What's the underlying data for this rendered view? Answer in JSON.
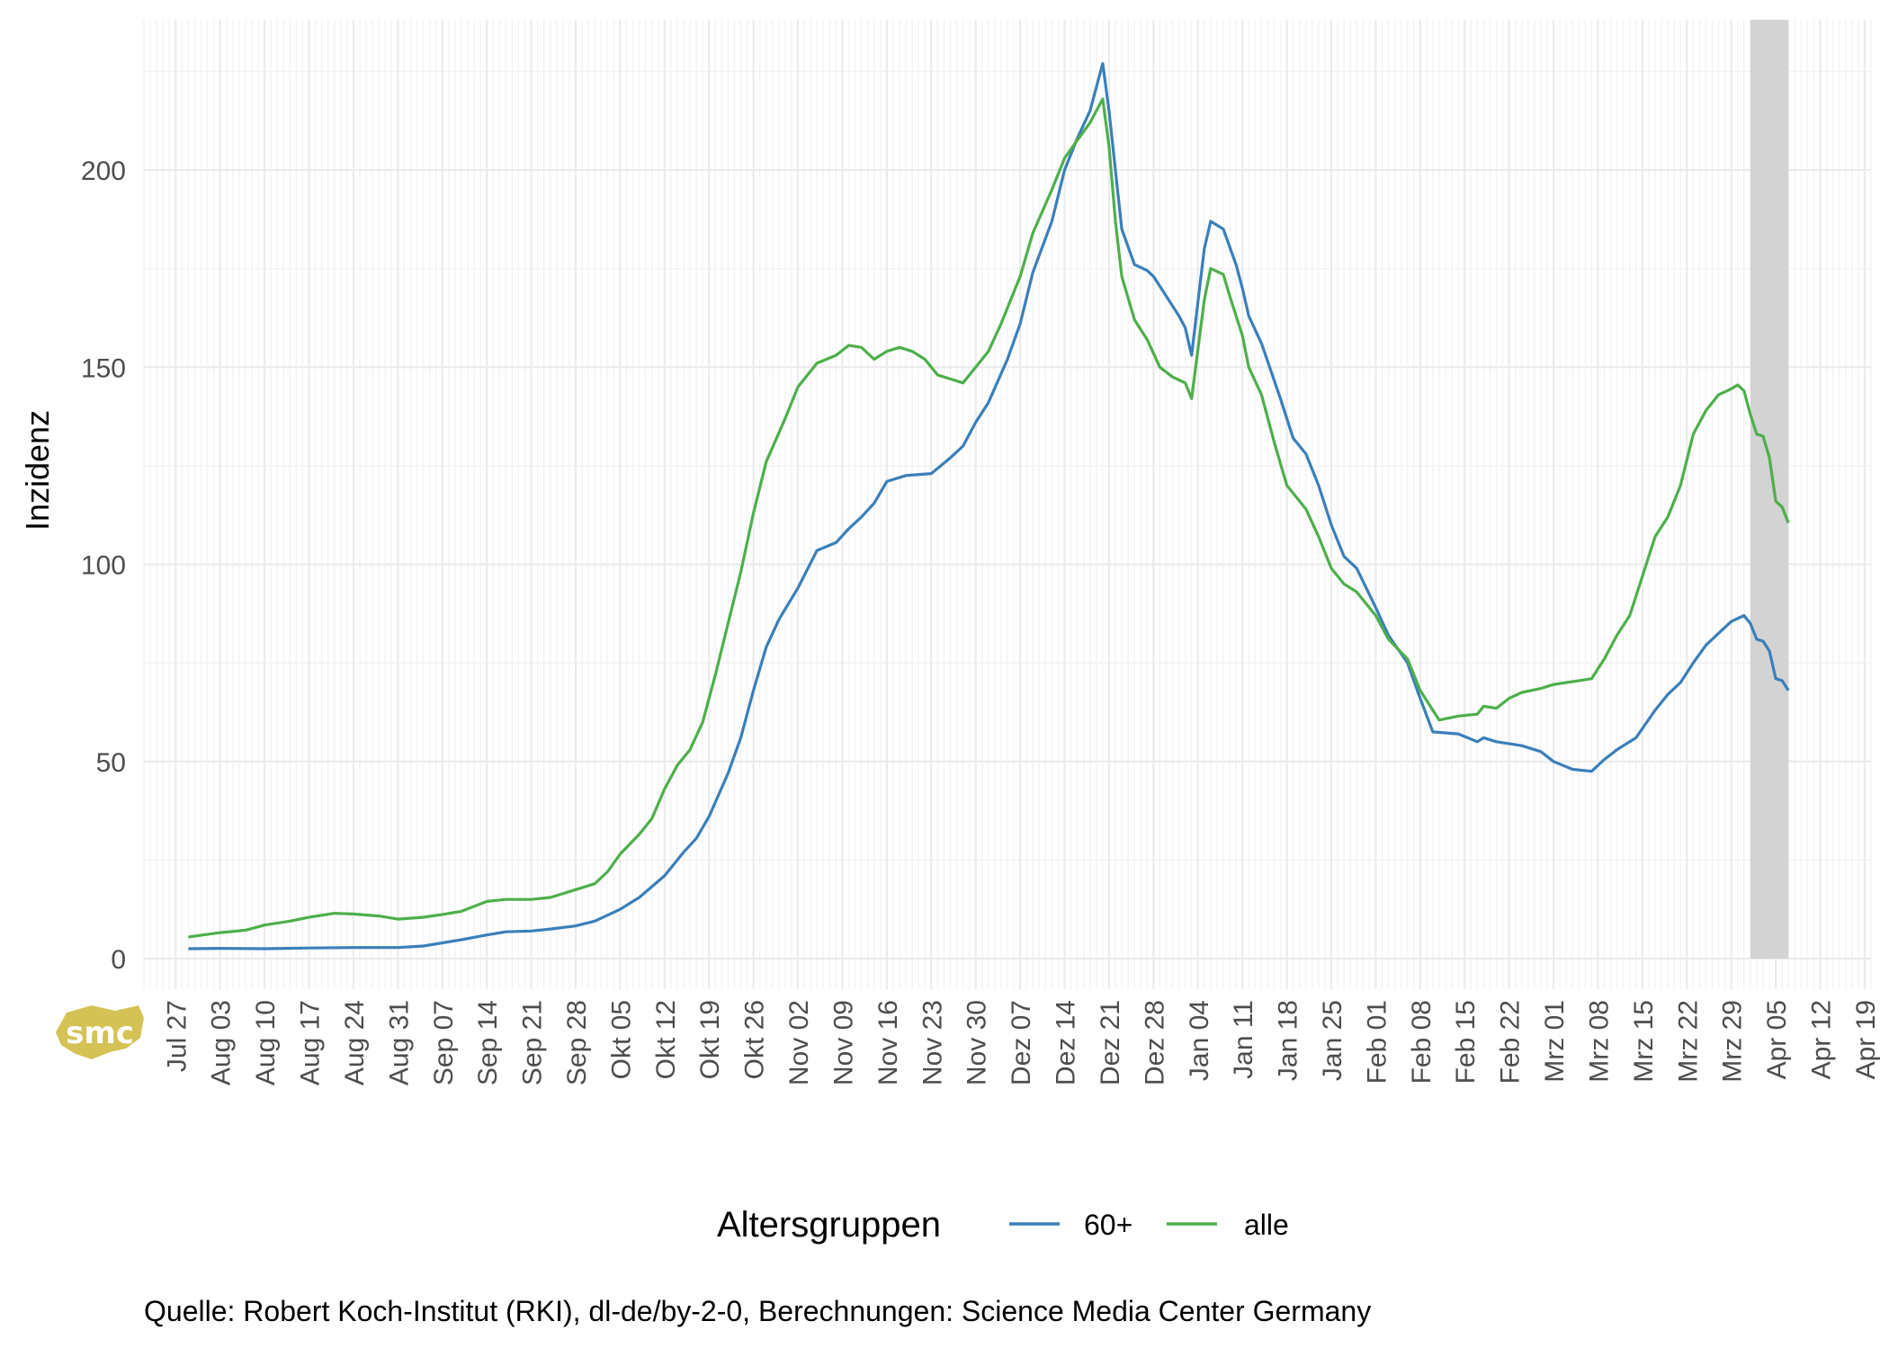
{
  "chart_data": {
    "type": "line",
    "ylabel": "Inzidenz",
    "ylim": [
      0,
      225
    ],
    "yticks": [
      0,
      50,
      100,
      150,
      200
    ],
    "xlim": [
      "2020-07-22",
      "2021-04-20"
    ],
    "x_tick_labels": [
      {
        "date": "2020-07-27",
        "label": "Jul 27"
      },
      {
        "date": "2020-08-03",
        "label": "Aug 03"
      },
      {
        "date": "2020-08-10",
        "label": "Aug 10"
      },
      {
        "date": "2020-08-17",
        "label": "Aug 17"
      },
      {
        "date": "2020-08-24",
        "label": "Aug 24"
      },
      {
        "date": "2020-08-31",
        "label": "Aug 31"
      },
      {
        "date": "2020-09-07",
        "label": "Sep 07"
      },
      {
        "date": "2020-09-14",
        "label": "Sep 14"
      },
      {
        "date": "2020-09-21",
        "label": "Sep 21"
      },
      {
        "date": "2020-09-28",
        "label": "Sep 28"
      },
      {
        "date": "2020-10-05",
        "label": "Okt 05"
      },
      {
        "date": "2020-10-12",
        "label": "Okt 12"
      },
      {
        "date": "2020-10-19",
        "label": "Okt 19"
      },
      {
        "date": "2020-10-26",
        "label": "Okt 26"
      },
      {
        "date": "2020-11-02",
        "label": "Nov 02"
      },
      {
        "date": "2020-11-09",
        "label": "Nov 09"
      },
      {
        "date": "2020-11-16",
        "label": "Nov 16"
      },
      {
        "date": "2020-11-23",
        "label": "Nov 23"
      },
      {
        "date": "2020-11-30",
        "label": "Nov 30"
      },
      {
        "date": "2020-12-07",
        "label": "Dez 07"
      },
      {
        "date": "2020-12-14",
        "label": "Dez 14"
      },
      {
        "date": "2020-12-21",
        "label": "Dez 21"
      },
      {
        "date": "2020-12-28",
        "label": "Dez 28"
      },
      {
        "date": "2021-01-04",
        "label": "Jan 04"
      },
      {
        "date": "2021-01-11",
        "label": "Jan 11"
      },
      {
        "date": "2021-01-18",
        "label": "Jan 18"
      },
      {
        "date": "2021-01-25",
        "label": "Jan 25"
      },
      {
        "date": "2021-02-01",
        "label": "Feb 01"
      },
      {
        "date": "2021-02-08",
        "label": "Feb 08"
      },
      {
        "date": "2021-02-15",
        "label": "Feb 15"
      },
      {
        "date": "2021-02-22",
        "label": "Feb 22"
      },
      {
        "date": "2021-03-01",
        "label": "Mrz 01"
      },
      {
        "date": "2021-03-08",
        "label": "Mrz 08"
      },
      {
        "date": "2021-03-15",
        "label": "Mrz 15"
      },
      {
        "date": "2021-03-22",
        "label": "Mrz 22"
      },
      {
        "date": "2021-03-29",
        "label": "Mrz 29"
      },
      {
        "date": "2021-04-05",
        "label": "Apr 05"
      },
      {
        "date": "2021-04-12",
        "label": "Apr 12"
      },
      {
        "date": "2021-04-19",
        "label": "Apr 19"
      }
    ],
    "shaded_range": {
      "from": "2021-04-01",
      "to": "2021-04-07",
      "color": "#d3d3d3"
    },
    "grid": true,
    "legend": {
      "title": "Altersgruppen",
      "position": "bottom"
    },
    "series": [
      {
        "name": "60+",
        "color": "#3a7fba",
        "points": [
          [
            "2020-07-29",
            2.5
          ],
          [
            "2020-08-03",
            2.6
          ],
          [
            "2020-08-10",
            2.5
          ],
          [
            "2020-08-17",
            2.7
          ],
          [
            "2020-08-24",
            2.8
          ],
          [
            "2020-08-31",
            2.8
          ],
          [
            "2020-09-04",
            3.2
          ],
          [
            "2020-09-07",
            4.0
          ],
          [
            "2020-09-10",
            4.8
          ],
          [
            "2020-09-14",
            6.0
          ],
          [
            "2020-09-17",
            6.8
          ],
          [
            "2020-09-21",
            7.0
          ],
          [
            "2020-09-24",
            7.5
          ],
          [
            "2020-09-28",
            8.3
          ],
          [
            "2020-10-01",
            9.5
          ],
          [
            "2020-10-05",
            12.5
          ],
          [
            "2020-10-08",
            15.5
          ],
          [
            "2020-10-12",
            21.0
          ],
          [
            "2020-10-15",
            27.0
          ],
          [
            "2020-10-17",
            30.5
          ],
          [
            "2020-10-19",
            36.0
          ],
          [
            "2020-10-22",
            47.0
          ],
          [
            "2020-10-24",
            56.0
          ],
          [
            "2020-10-26",
            68.0
          ],
          [
            "2020-10-28",
            79.0
          ],
          [
            "2020-10-30",
            86.0
          ],
          [
            "2020-11-02",
            94.0
          ],
          [
            "2020-11-05",
            103.5
          ],
          [
            "2020-11-08",
            105.5
          ],
          [
            "2020-11-10",
            109.0
          ],
          [
            "2020-11-12",
            112.0
          ],
          [
            "2020-11-14",
            115.5
          ],
          [
            "2020-11-16",
            121.0
          ],
          [
            "2020-11-19",
            122.5
          ],
          [
            "2020-11-23",
            123.0
          ],
          [
            "2020-11-26",
            127.0
          ],
          [
            "2020-11-28",
            130.0
          ],
          [
            "2020-11-30",
            136.0
          ],
          [
            "2020-12-02",
            141.0
          ],
          [
            "2020-12-05",
            152.0
          ],
          [
            "2020-12-07",
            161.0
          ],
          [
            "2020-12-09",
            174.0
          ],
          [
            "2020-12-12",
            187.0
          ],
          [
            "2020-12-14",
            200.0
          ],
          [
            "2020-12-16",
            208.0
          ],
          [
            "2020-12-18",
            215.0
          ],
          [
            "2020-12-20",
            227.0
          ],
          [
            "2020-12-21",
            215.0
          ],
          [
            "2020-12-23",
            185.0
          ],
          [
            "2020-12-25",
            176.0
          ],
          [
            "2020-12-27",
            174.5
          ],
          [
            "2020-12-28",
            173.0
          ],
          [
            "2020-12-30",
            168.0
          ],
          [
            "2021-01-01",
            163.0
          ],
          [
            "2021-01-02",
            160.0
          ],
          [
            "2021-01-03",
            153.0
          ],
          [
            "2021-01-05",
            180.0
          ],
          [
            "2021-01-06",
            187.0
          ],
          [
            "2021-01-08",
            185.0
          ],
          [
            "2021-01-10",
            176.0
          ],
          [
            "2021-01-11",
            170.0
          ],
          [
            "2021-01-12",
            163.0
          ],
          [
            "2021-01-14",
            156.0
          ],
          [
            "2021-01-17",
            142.0
          ],
          [
            "2021-01-19",
            132.0
          ],
          [
            "2021-01-21",
            128.0
          ],
          [
            "2021-01-23",
            120.0
          ],
          [
            "2021-01-25",
            110.0
          ],
          [
            "2021-01-27",
            102.0
          ],
          [
            "2021-01-29",
            99.0
          ],
          [
            "2021-02-01",
            89.0
          ],
          [
            "2021-02-03",
            82.0
          ],
          [
            "2021-02-06",
            75.0
          ],
          [
            "2021-02-08",
            66.0
          ],
          [
            "2021-02-10",
            57.5
          ],
          [
            "2021-02-14",
            57.0
          ],
          [
            "2021-02-17",
            55.0
          ],
          [
            "2021-02-18",
            56.0
          ],
          [
            "2021-02-20",
            55.0
          ],
          [
            "2021-02-24",
            54.0
          ],
          [
            "2021-02-27",
            52.5
          ],
          [
            "2021-03-01",
            50.0
          ],
          [
            "2021-03-04",
            48.0
          ],
          [
            "2021-03-07",
            47.5
          ],
          [
            "2021-03-09",
            50.5
          ],
          [
            "2021-03-11",
            53.0
          ],
          [
            "2021-03-14",
            56.0
          ],
          [
            "2021-03-17",
            63.0
          ],
          [
            "2021-03-19",
            67.0
          ],
          [
            "2021-03-21",
            70.0
          ],
          [
            "2021-03-23",
            75.0
          ],
          [
            "2021-03-25",
            79.5
          ],
          [
            "2021-03-27",
            82.5
          ],
          [
            "2021-03-29",
            85.5
          ],
          [
            "2021-03-31",
            87.0
          ],
          [
            "2021-04-01",
            85.0
          ],
          [
            "2021-04-02",
            81.0
          ],
          [
            "2021-04-03",
            80.5
          ],
          [
            "2021-04-04",
            78.0
          ],
          [
            "2021-04-05",
            71.0
          ],
          [
            "2021-04-06",
            70.5
          ],
          [
            "2021-04-07",
            68.0
          ]
        ]
      },
      {
        "name": "alle",
        "color": "#4daf4a",
        "points": [
          [
            "2020-07-29",
            5.5
          ],
          [
            "2020-08-03",
            6.6
          ],
          [
            "2020-08-07",
            7.2
          ],
          [
            "2020-08-10",
            8.5
          ],
          [
            "2020-08-14",
            9.5
          ],
          [
            "2020-08-17",
            10.5
          ],
          [
            "2020-08-21",
            11.5
          ],
          [
            "2020-08-24",
            11.3
          ],
          [
            "2020-08-28",
            10.8
          ],
          [
            "2020-08-31",
            10.0
          ],
          [
            "2020-09-04",
            10.5
          ],
          [
            "2020-09-07",
            11.2
          ],
          [
            "2020-09-10",
            12.0
          ],
          [
            "2020-09-14",
            14.5
          ],
          [
            "2020-09-17",
            15.0
          ],
          [
            "2020-09-21",
            15.0
          ],
          [
            "2020-09-24",
            15.5
          ],
          [
            "2020-09-28",
            17.5
          ],
          [
            "2020-10-01",
            19.0
          ],
          [
            "2020-10-03",
            22.0
          ],
          [
            "2020-10-05",
            26.5
          ],
          [
            "2020-10-08",
            31.5
          ],
          [
            "2020-10-10",
            35.5
          ],
          [
            "2020-10-12",
            43.0
          ],
          [
            "2020-10-14",
            49.0
          ],
          [
            "2020-10-16",
            53.0
          ],
          [
            "2020-10-18",
            60.0
          ],
          [
            "2020-10-20",
            72.0
          ],
          [
            "2020-10-22",
            85.0
          ],
          [
            "2020-10-24",
            98.0
          ],
          [
            "2020-10-26",
            113.0
          ],
          [
            "2020-10-28",
            126.0
          ],
          [
            "2020-10-31",
            137.0
          ],
          [
            "2020-11-02",
            145.0
          ],
          [
            "2020-11-05",
            151.0
          ],
          [
            "2020-11-08",
            153.0
          ],
          [
            "2020-11-10",
            155.5
          ],
          [
            "2020-11-12",
            155.0
          ],
          [
            "2020-11-14",
            152.0
          ],
          [
            "2020-11-16",
            154.0
          ],
          [
            "2020-11-18",
            155.0
          ],
          [
            "2020-11-20",
            154.0
          ],
          [
            "2020-11-22",
            152.0
          ],
          [
            "2020-11-24",
            148.0
          ],
          [
            "2020-11-26",
            147.0
          ],
          [
            "2020-11-28",
            146.0
          ],
          [
            "2020-11-30",
            150.0
          ],
          [
            "2020-12-02",
            154.0
          ],
          [
            "2020-12-04",
            161.0
          ],
          [
            "2020-12-07",
            173.0
          ],
          [
            "2020-12-09",
            184.0
          ],
          [
            "2020-12-12",
            195.0
          ],
          [
            "2020-12-14",
            203.0
          ],
          [
            "2020-12-16",
            207.5
          ],
          [
            "2020-12-18",
            212.0
          ],
          [
            "2020-12-20",
            218.0
          ],
          [
            "2020-12-21",
            206.0
          ],
          [
            "2020-12-22",
            187.0
          ],
          [
            "2020-12-23",
            173.0
          ],
          [
            "2020-12-25",
            162.0
          ],
          [
            "2020-12-27",
            157.0
          ],
          [
            "2020-12-29",
            150.0
          ],
          [
            "2020-12-31",
            147.5
          ],
          [
            "2021-01-02",
            146.0
          ],
          [
            "2021-01-03",
            142.0
          ],
          [
            "2021-01-05",
            167.0
          ],
          [
            "2021-01-06",
            175.0
          ],
          [
            "2021-01-08",
            173.5
          ],
          [
            "2021-01-09",
            168.0
          ],
          [
            "2021-01-11",
            158.0
          ],
          [
            "2021-01-12",
            150.0
          ],
          [
            "2021-01-14",
            143.0
          ],
          [
            "2021-01-16",
            131.0
          ],
          [
            "2021-01-18",
            120.0
          ],
          [
            "2021-01-21",
            114.0
          ],
          [
            "2021-01-23",
            107.0
          ],
          [
            "2021-01-25",
            99.0
          ],
          [
            "2021-01-27",
            95.0
          ],
          [
            "2021-01-29",
            93.0
          ],
          [
            "2021-02-01",
            87.0
          ],
          [
            "2021-02-03",
            81.0
          ],
          [
            "2021-02-06",
            76.0
          ],
          [
            "2021-02-08",
            68.0
          ],
          [
            "2021-02-10",
            63.0
          ],
          [
            "2021-02-11",
            60.5
          ],
          [
            "2021-02-14",
            61.5
          ],
          [
            "2021-02-17",
            62.0
          ],
          [
            "2021-02-18",
            64.0
          ],
          [
            "2021-02-20",
            63.5
          ],
          [
            "2021-02-22",
            66.0
          ],
          [
            "2021-02-24",
            67.5
          ],
          [
            "2021-02-27",
            68.5
          ],
          [
            "2021-03-01",
            69.5
          ],
          [
            "2021-03-03",
            70.0
          ],
          [
            "2021-03-05",
            70.5
          ],
          [
            "2021-03-07",
            71.0
          ],
          [
            "2021-03-09",
            76.0
          ],
          [
            "2021-03-11",
            82.0
          ],
          [
            "2021-03-13",
            87.0
          ],
          [
            "2021-03-15",
            97.0
          ],
          [
            "2021-03-17",
            107.0
          ],
          [
            "2021-03-19",
            112.0
          ],
          [
            "2021-03-21",
            120.0
          ],
          [
            "2021-03-23",
            133.0
          ],
          [
            "2021-03-25",
            139.0
          ],
          [
            "2021-03-27",
            143.0
          ],
          [
            "2021-03-29",
            144.5
          ],
          [
            "2021-03-30",
            145.5
          ],
          [
            "2021-03-31",
            144.0
          ],
          [
            "2021-04-01",
            138.0
          ],
          [
            "2021-04-02",
            133.0
          ],
          [
            "2021-04-03",
            132.5
          ],
          [
            "2021-04-04",
            127.0
          ],
          [
            "2021-04-05",
            116.0
          ],
          [
            "2021-04-06",
            114.5
          ],
          [
            "2021-04-07",
            110.5
          ]
        ]
      }
    ]
  },
  "caption": "Quelle: Robert Koch-Institut (RKI), dl-de/by-2-0, Berechnungen: Science Media Center Germany",
  "logo": {
    "text": "smc",
    "color": "#d4c255",
    "icon": "smc-logo-icon"
  }
}
